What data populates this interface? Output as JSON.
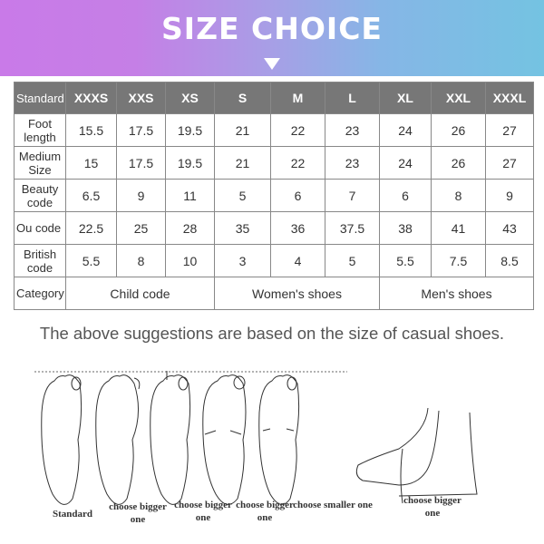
{
  "banner": {
    "title": "SIZE CHOICE",
    "arrow_icon": "down-triangle-icon",
    "gradient": [
      "#c97ae8",
      "#74c3e2"
    ]
  },
  "table": {
    "header": [
      "Standard",
      "XXXS",
      "XXS",
      "XS",
      "S",
      "M",
      "L",
      "XL",
      "XXL",
      "XXXL"
    ],
    "rows": [
      {
        "label": "Foot length",
        "values": [
          "15.5",
          "17.5",
          "19.5",
          "21",
          "22",
          "23",
          "24",
          "26",
          "27"
        ]
      },
      {
        "label": "Medium Size",
        "values": [
          "15",
          "17.5",
          "19.5",
          "21",
          "22",
          "23",
          "24",
          "26",
          "27"
        ]
      },
      {
        "label": "Beauty code",
        "values": [
          "6.5",
          "9",
          "11",
          "5",
          "6",
          "7",
          "6",
          "8",
          "9"
        ]
      },
      {
        "label": "Ou code",
        "values": [
          "22.5",
          "25",
          "28",
          "35",
          "36",
          "37.5",
          "38",
          "41",
          "43"
        ]
      },
      {
        "label": "British code",
        "values": [
          "5.5",
          "8",
          "10",
          "3",
          "4",
          "5",
          "5.5",
          "7.5",
          "8.5"
        ]
      }
    ],
    "category": {
      "label": "Category",
      "groups": [
        "Child code",
        "Women's shoes",
        "Men's shoes"
      ]
    }
  },
  "note": "The above suggestions are based on the size of casual shoes.",
  "feet": [
    "Standard",
    "choose bigger one",
    "choose bigger one",
    "choose bigger one",
    "choose smaller one",
    "choose bigger one"
  ]
}
